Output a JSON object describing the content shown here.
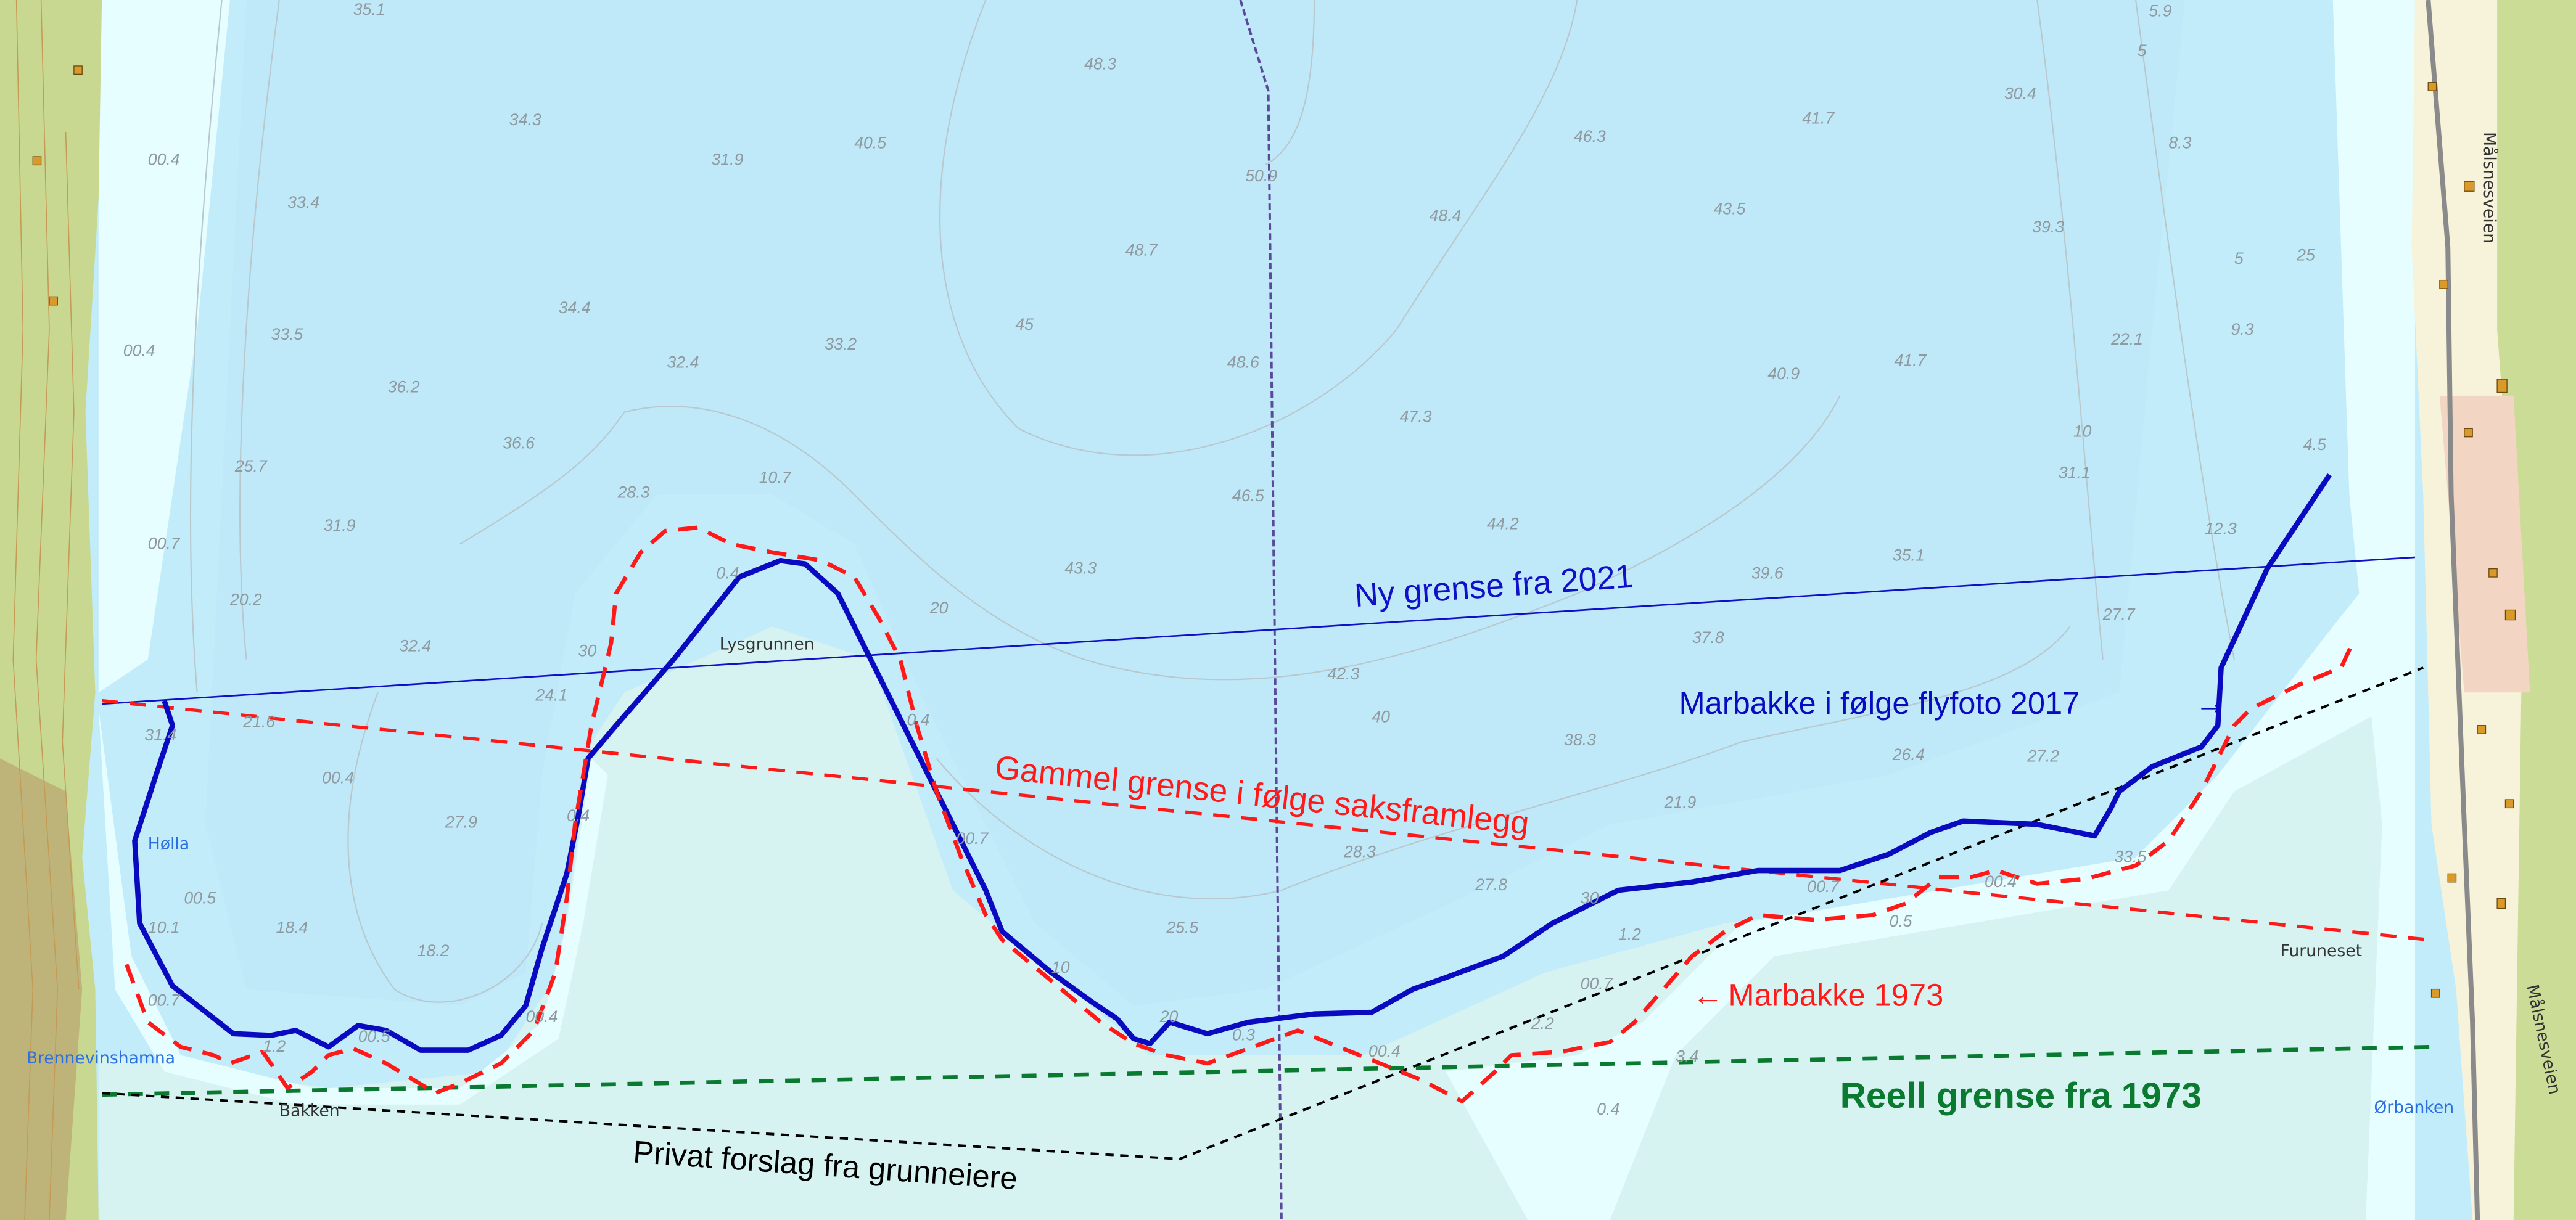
{
  "annotations": {
    "ny_grense": "Ny grense fra 2021",
    "gammel_grense": "Gammel grense i følge saksframlegg",
    "marbakke_2017": "Marbakke i følge flyfoto 2017",
    "marbakke_2017_arrow": "→",
    "marbakke_1973": "Marbakke 1973",
    "marbakke_1973_arrow": "←",
    "reell_grense": "Reell grense fra 1973",
    "privat_forslag": "Privat forslag fra grunneiere"
  },
  "places": {
    "lysgrunnen": "Lysgrunnen",
    "holla": "Hølla",
    "brennevinshamna": "Brennevinshamna",
    "bakken": "Bakken",
    "furuneset": "Furuneset",
    "orbanken": "Ørbanken",
    "road_1": "Målsnesveien",
    "road_2": "Målsnesveien"
  },
  "depths": [
    "35.1",
    "48.3",
    "5.9",
    "34.3",
    "31.9",
    "40.5",
    "50.9",
    "46.3",
    "41.7",
    "30.4",
    "00.4",
    "33.4",
    "48.4",
    "43.5",
    "8.3",
    "39.3",
    "48.7",
    "00.4",
    "33.5",
    "34.4",
    "45",
    "33.2",
    "41.7",
    "22.1",
    "9.3",
    "32.4",
    "36.2",
    "48.6",
    "40.9",
    "47.3",
    "36.6",
    "25.7",
    "28.3",
    "10.7",
    "46.5",
    "44.2",
    "31.1",
    "4.5",
    "31.9",
    "00.7",
    "43.3",
    "39.6",
    "35.1",
    "12.3",
    "20.2",
    "32.4",
    "42.3",
    "37.8",
    "27.7",
    "24.1",
    "21.6",
    "40",
    "38.3",
    "31.4",
    "00.4",
    "27.9",
    "26.4",
    "27.2",
    "21.9",
    "28.3",
    "33.5",
    "00.5",
    "10.1",
    "27.8",
    "00.7",
    "00.4",
    "18.4",
    "18.2",
    "25.5",
    "1.2",
    "0.4",
    "00.7",
    "00.5",
    "1.2",
    "00.4",
    "0.3",
    "00.4",
    "2.2",
    "00.7",
    "3.4",
    "0.4",
    "0.4",
    "0.4",
    "00.7",
    "0.5",
    "10",
    "20",
    "30",
    "20",
    "30",
    "10",
    "5",
    "5",
    "25"
  ],
  "colors": {
    "ny_grense": "#1010c8",
    "marbakke_2017": "#0a0ac0",
    "gammel_grense": "#ff1a1a",
    "reell_grense": "#0a7a30",
    "privat_forslag": "#000000",
    "deep_water": "#c2ecfa",
    "shallow_water": "#e6feff",
    "flat": "#d6f2f1"
  }
}
